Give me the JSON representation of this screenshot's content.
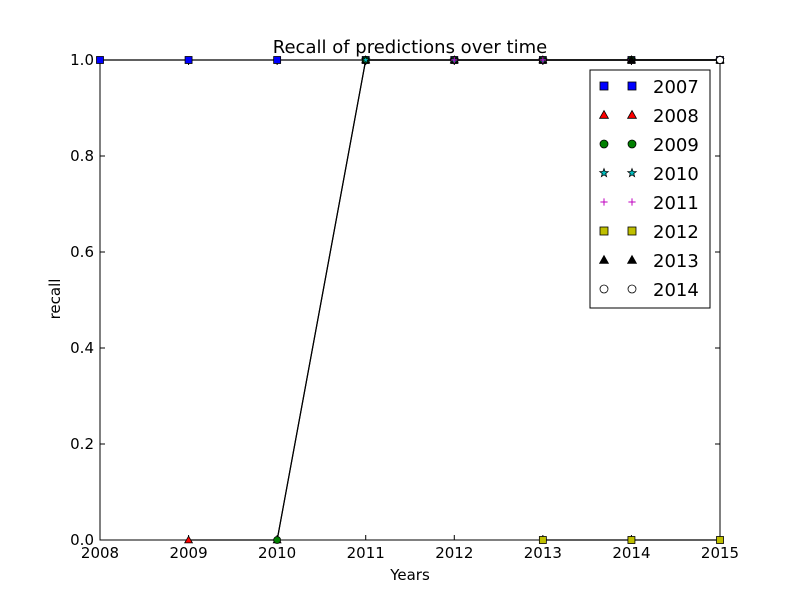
{
  "chart_data": {
    "type": "line",
    "title": "Recall of predictions over time",
    "xlabel": "Years",
    "ylabel": "recall",
    "xlim": [
      2008,
      2015
    ],
    "ylim": [
      0.0,
      1.0
    ],
    "xticks": [
      2008,
      2009,
      2010,
      2011,
      2012,
      2013,
      2014,
      2015
    ],
    "xtick_labels": [
      "2008",
      "2009",
      "2010",
      "2011",
      "2012",
      "2013",
      "2014",
      "2015"
    ],
    "yticks": [
      0.0,
      0.2,
      0.4,
      0.6,
      0.8,
      1.0
    ],
    "ytick_labels": [
      "0.0",
      "0.2",
      "0.4",
      "0.6",
      "0.8",
      "1.0"
    ],
    "grid": false,
    "legend_position": "top-right",
    "series": [
      {
        "name": "2007",
        "marker": "square",
        "color": "#0000ff",
        "x": [
          2008,
          2009,
          2010,
          2011,
          2012,
          2013,
          2014,
          2015
        ],
        "y": [
          1.0,
          1.0,
          1.0,
          1.0,
          1.0,
          1.0,
          1.0,
          1.0
        ]
      },
      {
        "name": "2008",
        "marker": "triangle",
        "color": "#ff0000",
        "x": [
          2009,
          2010,
          2011,
          2012,
          2013,
          2014,
          2015
        ],
        "y": [
          0.0,
          0.0,
          1.0,
          1.0,
          1.0,
          1.0,
          1.0
        ]
      },
      {
        "name": "2009",
        "marker": "circle",
        "color": "#008000",
        "x": [
          2010,
          2011,
          2012,
          2013,
          2014,
          2015
        ],
        "y": [
          0.0,
          1.0,
          1.0,
          1.0,
          1.0,
          1.0
        ]
      },
      {
        "name": "2010",
        "marker": "star",
        "color": "#00bfbf",
        "x": [
          2011,
          2012,
          2013,
          2014,
          2015
        ],
        "y": [
          1.0,
          1.0,
          1.0,
          1.0,
          1.0
        ]
      },
      {
        "name": "2011",
        "marker": "plus",
        "color": "#bf00bf",
        "x": [
          2012,
          2013,
          2014,
          2015
        ],
        "y": [
          1.0,
          1.0,
          1.0,
          1.0
        ]
      },
      {
        "name": "2012",
        "marker": "square",
        "color": "#bfbf00",
        "x": [
          2013,
          2014,
          2015
        ],
        "y": [
          0.0,
          0.0,
          0.0
        ]
      },
      {
        "name": "2013",
        "marker": "triangle",
        "color": "#000000",
        "x": [
          2014,
          2015
        ],
        "y": [
          1.0,
          1.0
        ]
      },
      {
        "name": "2014",
        "marker": "circle-open",
        "color": "#ffffff",
        "x": [
          2015
        ],
        "y": [
          1.0
        ]
      }
    ]
  }
}
